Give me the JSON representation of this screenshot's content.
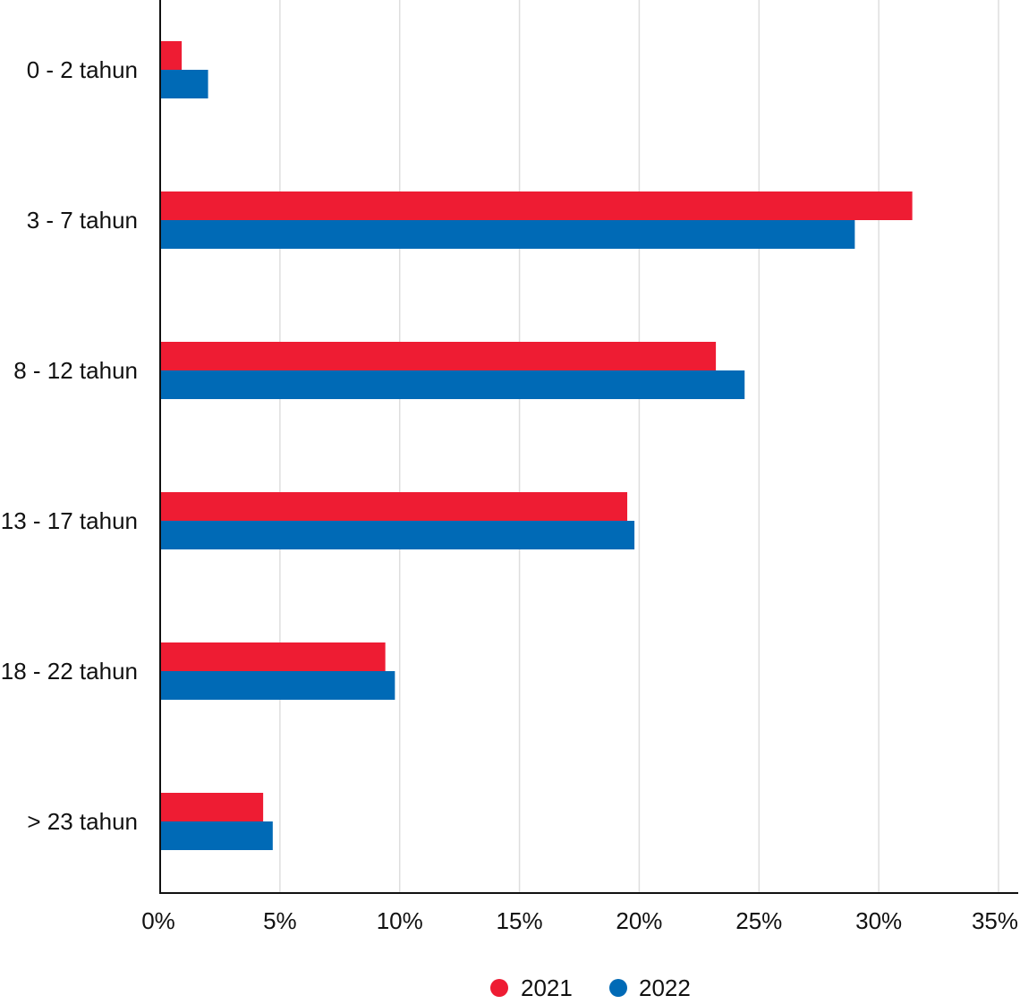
{
  "chart_data": {
    "type": "bar",
    "orientation": "horizontal",
    "categories": [
      "0 - 2 tahun",
      "3 - 7 tahun",
      "8 - 12 tahun",
      "13 - 17 tahun",
      "18 - 22 tahun",
      "> 23 tahun"
    ],
    "series": [
      {
        "name": "2021",
        "color": "#EE1C33",
        "values": [
          0.9,
          31.4,
          23.2,
          19.5,
          9.4,
          4.3
        ]
      },
      {
        "name": "2022",
        "color": "#006AB6",
        "values": [
          2.0,
          29.0,
          24.4,
          19.8,
          9.8,
          4.7
        ]
      }
    ],
    "xlim": [
      0,
      35
    ],
    "xticks": [
      "0%",
      "5%",
      "10%",
      "15%",
      "20%",
      "25%",
      "30%",
      "35%"
    ],
    "grid": true,
    "legend": "bottom-center",
    "title": "",
    "xlabel": "",
    "ylabel": ""
  }
}
